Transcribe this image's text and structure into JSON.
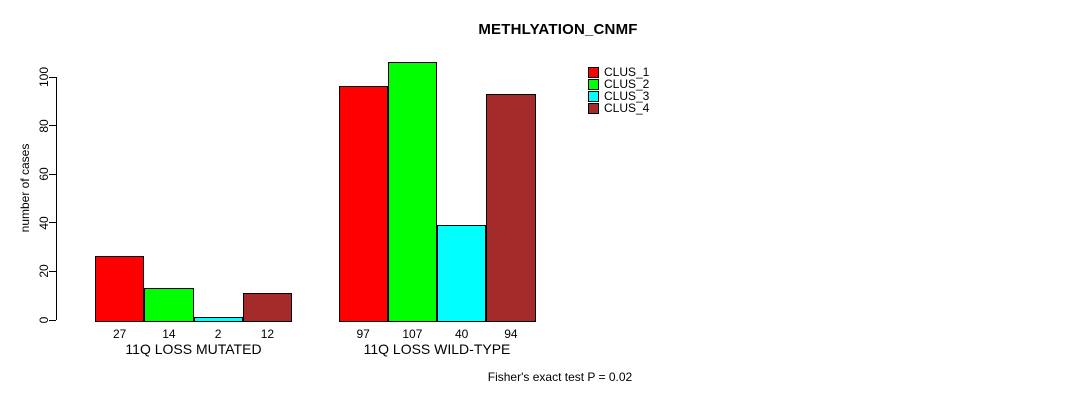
{
  "chart_data": {
    "type": "bar",
    "title": "METHLYATION_CNMF",
    "ylabel": "number of cases",
    "xlabel": "",
    "ylim": [
      0,
      110
    ],
    "yticks": [
      0,
      20,
      40,
      60,
      80,
      100
    ],
    "grid": false,
    "legend_position": "top-right",
    "show_bar_values": true,
    "categories": [
      "11Q LOSS MUTATED",
      "11Q LOSS WILD-TYPE"
    ],
    "series": [
      {
        "name": "CLUS_1",
        "color": "#ff0000",
        "values": [
          27,
          97
        ]
      },
      {
        "name": "CLUS_2",
        "color": "#00ff00",
        "values": [
          14,
          107
        ]
      },
      {
        "name": "CLUS_3",
        "color": "#00ffff",
        "values": [
          2,
          40
        ]
      },
      {
        "name": "CLUS_4",
        "color": "#a52a2a",
        "values": [
          12,
          94
        ]
      }
    ],
    "annotation": "Fisher's exact test P = 0.02"
  }
}
